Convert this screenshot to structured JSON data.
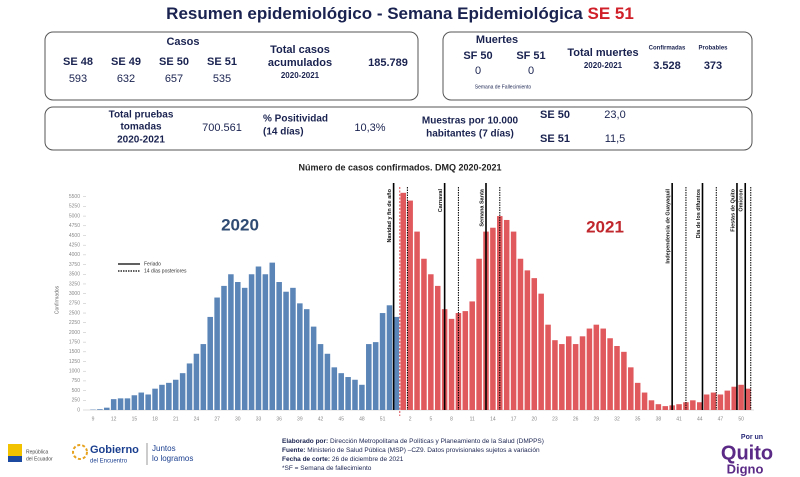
{
  "header": {
    "title": "Resumen epidemiológico - Semana Epidemiológica ",
    "title_highlight": "SE 51"
  },
  "casos": {
    "title": "Casos",
    "weeks": [
      "SE 48",
      "SE 49",
      "SE 50",
      "SE 51"
    ],
    "values": [
      "593",
      "632",
      "657",
      "535"
    ],
    "total_label": [
      "Total casos",
      "acumulados"
    ],
    "total_period": "2020-2021",
    "total": "185.789"
  },
  "muertes": {
    "title": "Muertes",
    "weeks": [
      "SF 50",
      "SF 51"
    ],
    "values": [
      "0",
      "0"
    ],
    "note": "Semana de Fallecimiento",
    "total_label": "Total muertes",
    "total_period": "2020-2021",
    "confirmed_label": "Confirmadas",
    "confirmed": "3.528",
    "probable_label": "Probables",
    "probable": "373"
  },
  "pruebas": {
    "label": [
      "Total pruebas",
      "tomadas"
    ],
    "period": "2020-2021",
    "value": "700.561",
    "positivity_label": [
      "% Positividad",
      "(14 días)"
    ],
    "positivity": "10,3%",
    "samples_label": [
      "Muestras por 10.000",
      "habitantes (7 días)"
    ],
    "samples": [
      [
        "SE 50",
        "23,0"
      ],
      [
        "SE 51",
        "11,5"
      ]
    ]
  },
  "chart_data": {
    "type": "bar",
    "title": "Número de casos confirmados. DMQ 2020-2021",
    "y_label": "Confirmados",
    "categories": [
      "9",
      null,
      null,
      "12",
      null,
      null,
      "15",
      null,
      null,
      "18",
      null,
      null,
      "21",
      null,
      null,
      "24",
      null,
      null,
      "27",
      null,
      null,
      "30",
      null,
      null,
      "33",
      null,
      null,
      "36",
      null,
      null,
      "39",
      null,
      null,
      "42",
      null,
      null,
      "45",
      null,
      null,
      "48",
      null,
      null,
      "51",
      null,
      null,
      null,
      "2",
      null,
      null,
      "5",
      null,
      null,
      "8",
      null,
      null,
      "11",
      null,
      null,
      "14",
      null,
      null,
      "17",
      null,
      null,
      "20",
      null,
      null,
      "23",
      null,
      null,
      "26",
      null,
      null,
      "29",
      null,
      null,
      "32",
      null,
      null,
      "35",
      null,
      null,
      "38",
      null,
      null,
      "41",
      null,
      null,
      "44",
      null,
      null,
      "47",
      null,
      null,
      "50",
      null
    ],
    "series": [
      {
        "name": "2020",
        "color": "#5b85b7",
        "values": [
          10,
          20,
          60,
          280,
          300,
          300,
          380,
          450,
          400,
          550,
          650,
          700,
          780,
          950,
          1200,
          1450,
          1700,
          2400,
          2900,
          3200,
          3500,
          3300,
          3150,
          3500,
          3700,
          3500,
          3800,
          3300,
          3050,
          3150,
          2750,
          2600,
          2150,
          1700,
          1450,
          1100,
          950,
          850,
          780,
          650,
          1700,
          1750,
          2500,
          2700,
          2400,
          null,
          null,
          null,
          null,
          null,
          null,
          null,
          null,
          null,
          null,
          null,
          null,
          null,
          null,
          null,
          null,
          null,
          null,
          null,
          null,
          null,
          null,
          null,
          null,
          null,
          null,
          null,
          null,
          null,
          null,
          null,
          null,
          null,
          null,
          null,
          null,
          null,
          null,
          null,
          null,
          null,
          null,
          null,
          null,
          null,
          null,
          null,
          null,
          null,
          null,
          null
        ]
      },
      {
        "name": "2021",
        "color": "#e0595d",
        "values": [
          null,
          null,
          null,
          null,
          null,
          null,
          null,
          null,
          null,
          null,
          null,
          null,
          null,
          null,
          null,
          null,
          null,
          null,
          null,
          null,
          null,
          null,
          null,
          null,
          null,
          null,
          null,
          null,
          null,
          null,
          null,
          null,
          null,
          null,
          null,
          null,
          null,
          null,
          null,
          null,
          null,
          null,
          null,
          null,
          null,
          5600,
          5400,
          4600,
          3900,
          3500,
          3200,
          2600,
          2350,
          2500,
          2550,
          2800,
          3900,
          4600,
          4700,
          5000,
          4900,
          4600,
          3900,
          3600,
          3400,
          3000,
          2200,
          1800,
          1700,
          1900,
          1700,
          1900,
          2100,
          2200,
          2100,
          1850,
          1650,
          1500,
          1100,
          700,
          450,
          250,
          150,
          100,
          120,
          150,
          200,
          250,
          200,
          400,
          450,
          400,
          500,
          600,
          650,
          550
        ]
      }
    ],
    "ylim": [
      0,
      5750
    ],
    "yticks": [
      0,
      250,
      500,
      750,
      1000,
      1250,
      1500,
      1750,
      2000,
      2250,
      2500,
      2750,
      3000,
      3250,
      3500,
      3750,
      4000,
      4250,
      4500,
      4750,
      5000,
      5250,
      5500
    ],
    "grid": false,
    "legend": [
      "Feriado",
      "14 días posteriores"
    ],
    "annotations": [
      "Navidad y fin de año",
      "Carnaval",
      "Semana Santa",
      "Independencia de Guayaquil",
      "Día de los difuntos",
      "Fiestas de Quito",
      "Omicron"
    ]
  },
  "footer": {
    "lines": [
      [
        "Elaborado por:",
        " Dirección Metropolitana de Políticas y Planeamiento de la Salud (DMPPS)"
      ],
      [
        "Fuente:",
        " Ministerio de Salud Pública (MSP) –CZ9. Datos provisionales sujetos a variación"
      ],
      [
        "Fecha de corte:",
        " 26 de diciembre de 2021"
      ],
      [
        "",
        "*SF = Semana de fallecimiento"
      ]
    ]
  },
  "branding": {
    "ecuador": [
      "República",
      "del Ecuador"
    ],
    "gobierno": [
      "Gobierno",
      "del Encuentro"
    ],
    "juntos": [
      "Juntos",
      "lo logramos"
    ],
    "quito": [
      "Por un",
      "Quito",
      "Digno"
    ]
  }
}
